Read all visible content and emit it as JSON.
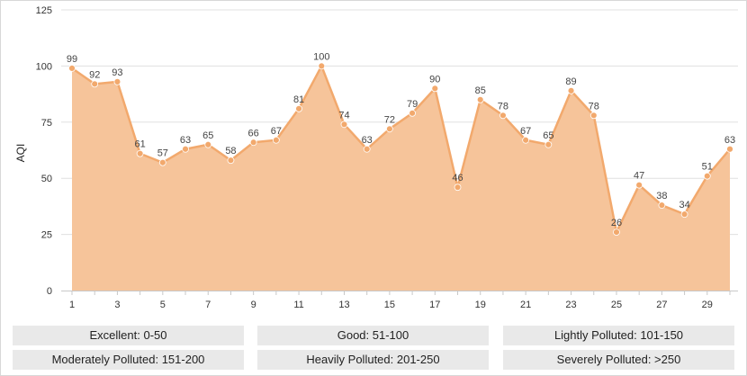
{
  "chart_data": {
    "type": "area",
    "ylabel": "AQI",
    "xlabel": "",
    "title": "",
    "x": [
      1,
      2,
      3,
      4,
      5,
      6,
      7,
      8,
      9,
      10,
      11,
      12,
      13,
      14,
      15,
      16,
      17,
      18,
      19,
      20,
      21,
      22,
      23,
      24,
      25,
      26,
      27,
      28,
      29,
      30
    ],
    "values": [
      99,
      92,
      93,
      61,
      57,
      63,
      65,
      58,
      66,
      67,
      81,
      100,
      74,
      63,
      72,
      79,
      90,
      46,
      85,
      78,
      67,
      65,
      89,
      78,
      26,
      47,
      38,
      34,
      51,
      63
    ],
    "xlim": [
      1,
      30
    ],
    "ylim": [
      0,
      125
    ],
    "xticks": [
      1,
      3,
      5,
      7,
      9,
      11,
      13,
      15,
      17,
      19,
      21,
      23,
      25,
      27,
      29
    ],
    "yticks": [
      0,
      25,
      50,
      75,
      100,
      125
    ],
    "grid": true,
    "colors": {
      "fill": "#f6c49a",
      "line": "#f2a96d",
      "marker": "#f2a96d",
      "grid": "#e0e0e0",
      "label": "#444444"
    }
  },
  "legend": {
    "items": [
      "Excellent: 0-50",
      "Good: 51-100",
      "Lightly Polluted: 101-150",
      "Moderately Polluted: 151-200",
      "Heavily Polluted: 201-250",
      "Severely Polluted: >250"
    ]
  }
}
